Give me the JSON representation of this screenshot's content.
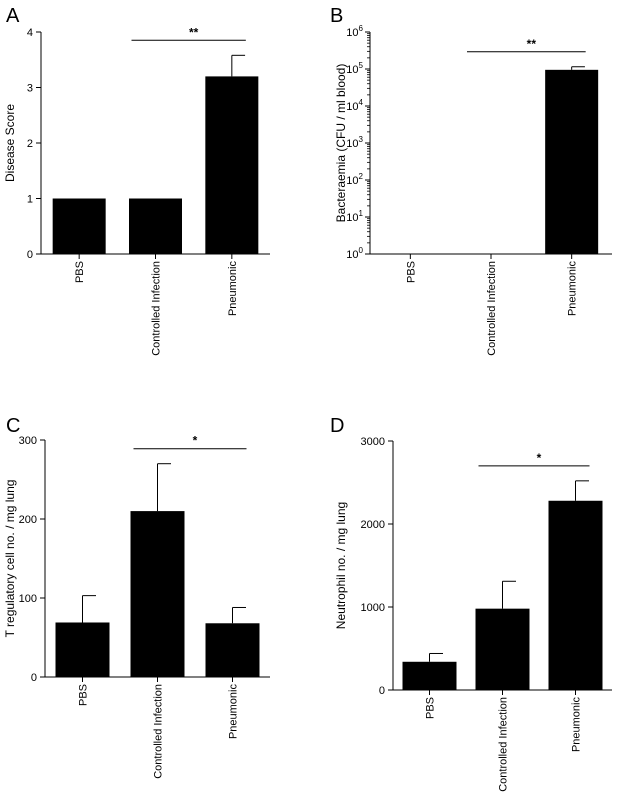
{
  "chart_data": [
    {
      "panel": "A",
      "type": "bar",
      "categories": [
        "PBS",
        "Controlled Infection",
        "Pneumonic"
      ],
      "values": [
        1,
        1,
        3.2
      ],
      "errors": [
        0,
        0,
        0.38
      ],
      "ylabel": "Disease Score",
      "ylim": [
        0,
        4
      ],
      "yticks": [
        "0",
        "1",
        "2",
        "3",
        "4"
      ],
      "log_scale": false,
      "significance": {
        "from": "Controlled Infection",
        "to": "Pneumonic",
        "label": "**"
      },
      "grid": false,
      "bar_color": "#000000"
    },
    {
      "panel": "B",
      "type": "bar",
      "categories": [
        "PBS",
        "Controlled Infection",
        "Pneumonic"
      ],
      "values": [
        1,
        1,
        95000
      ],
      "errors": [
        0,
        0,
        20000
      ],
      "ylabel": "Bacteraemia (CFU / ml blood)",
      "ylim": [
        1,
        1000000
      ],
      "yticks": [
        "0",
        "1",
        "2",
        "3",
        "4",
        "5",
        "6"
      ],
      "ytick_base": "10",
      "log_scale": true,
      "significance": {
        "from": "Controlled Infection",
        "to": "Pneumonic",
        "label": "**"
      },
      "grid": false,
      "bar_color": "#000000"
    },
    {
      "panel": "C",
      "type": "bar",
      "categories": [
        "PBS",
        "Controlled Infection",
        "Pneumonic"
      ],
      "values": [
        69,
        210,
        68
      ],
      "errors": [
        34,
        60,
        20
      ],
      "ylabel": "T regulatory cell no. / mg lung",
      "ylim": [
        0,
        300
      ],
      "yticks": [
        "0",
        "100",
        "200",
        "300"
      ],
      "log_scale": false,
      "significance": {
        "from": "Controlled Infection",
        "to": "Pneumonic",
        "label": "*"
      },
      "grid": false,
      "bar_color": "#000000"
    },
    {
      "panel": "D",
      "type": "bar",
      "categories": [
        "PBS",
        "Controlled Infection",
        "Pneumonic"
      ],
      "values": [
        340,
        980,
        2280
      ],
      "errors": [
        100,
        330,
        240
      ],
      "ylabel": "Neutrophil no. / mg lung",
      "ylim": [
        0,
        3000
      ],
      "yticks": [
        "0",
        "1000",
        "2000",
        "3000"
      ],
      "log_scale": false,
      "significance": {
        "from": "Controlled Infection",
        "to": "Pneumonic",
        "label": "*"
      },
      "grid": false,
      "bar_color": "#000000"
    }
  ]
}
